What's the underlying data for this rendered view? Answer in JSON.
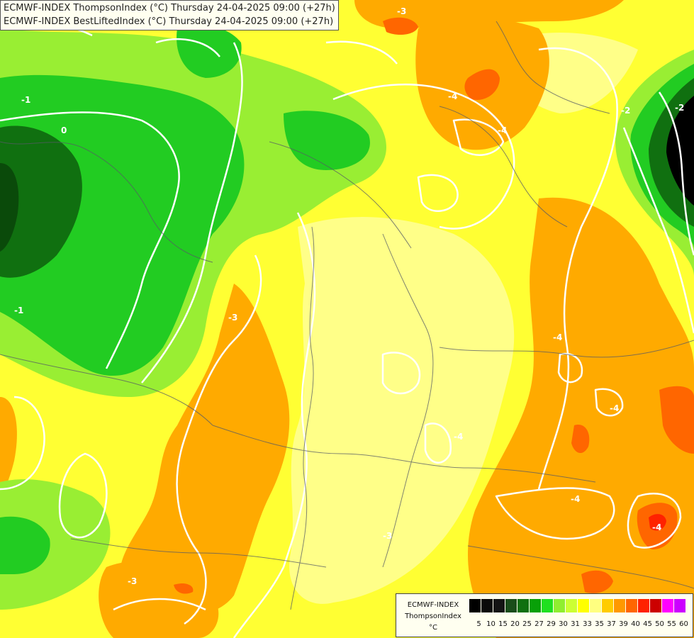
{
  "header": {
    "line1": "ECMWF-INDEX ThompsonIndex (°C) Thursday 24-04-2025 09:00 (+27h)",
    "line2": "ECMWF-INDEX BestLiftedIndex (°C) Thursday 24-04-2025 09:00 (+27h)"
  },
  "legend": {
    "model": "ECMWF-INDEX",
    "parameter": "ThompsonIndex",
    "unit": "°C",
    "ticks": [
      "5",
      "10",
      "15",
      "20",
      "25",
      "27",
      "29",
      "30",
      "31",
      "33",
      "35",
      "37",
      "39",
      "40",
      "45",
      "50",
      "55",
      "60"
    ],
    "colors": [
      "#000000",
      "#0a0a0a",
      "#141414",
      "#1a4d1a",
      "#107010",
      "#08a008",
      "#20e020",
      "#90ee30",
      "#ccff33",
      "#ffff00",
      "#ffff80",
      "#ffcc00",
      "#ff9900",
      "#ff6600",
      "#ff2200",
      "#cc0000",
      "#ff00ff",
      "#cc00ff",
      "#9933ff",
      "#6633ff",
      "#0000ff"
    ]
  },
  "contour_labels": [
    "-2",
    "-1",
    "0",
    "-1",
    "-3",
    "-3",
    "-4",
    "-4",
    "-4",
    "-4",
    "-3",
    "-2",
    "-3",
    "-4",
    "-4",
    "-4"
  ]
}
